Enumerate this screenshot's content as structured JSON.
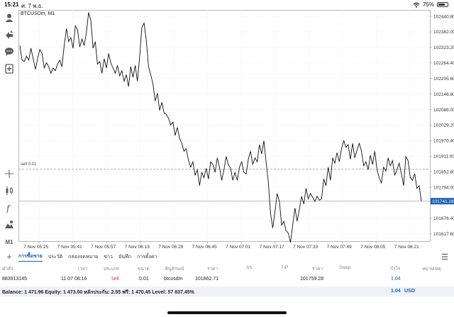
{
  "status_bar": {
    "time": "15:21",
    "date": "ศ. 7 พ.ย.",
    "battery": "75%",
    "battery_level": 0.75
  },
  "left_toolbar": {
    "icons": [
      "account-icon",
      "trade-icon",
      "chat-icon",
      "add-document-icon",
      "crosshair-icon",
      "candles-icon",
      "function-icon",
      "objects-icon",
      "timeframe-label"
    ],
    "timeframe": "M1"
  },
  "chart": {
    "symbol_title": "BTCUSDm, M1",
    "sell_line_label": "sell 0.01",
    "current_price": "101741.28",
    "accent": "#1e5fb4"
  },
  "chart_data": {
    "type": "line",
    "title": "BTCUSDm, M1",
    "y_ticks": [
      102440.8,
      102382.0,
      102323.2,
      102264.4,
      102205.6,
      102146.8,
      102088.0,
      102029.2,
      101970.4,
      101911.6,
      101852.8,
      101794.0,
      101735.2,
      101676.4,
      101617.6
    ],
    "y_tick_labels": [
      "102440.80",
      "102382.00",
      "102323.20",
      "102264.40",
      "102205.60",
      "102146.80",
      "102088.00",
      "102029.20",
      "101970.40",
      "101911.60",
      "101852.80",
      "101794.00",
      "101735.20",
      "101676.40",
      "101617.60"
    ],
    "x_labels": [
      "7 Nov 05:25",
      "7 Nov 05:41",
      "7 Nov 05:57",
      "7 Nov 06:13",
      "7 Nov 06:29",
      "7 Nov 06:45",
      "7 Nov 07:01",
      "7 Nov 07:17",
      "7 Nov 07:33",
      "7 Nov 07:49",
      "7 Nov 08:05",
      "7 Nov 08:21"
    ],
    "ylim": [
      101590,
      102465
    ],
    "sell_level": 101862.71,
    "current_price": 101741.28,
    "grid": true,
    "values": [
      102330,
      102275,
      102270,
      102290,
      102275,
      102320,
      102280,
      102240,
      102280,
      102315,
      102300,
      102245,
      102265,
      102250,
      102225,
      102245,
      102235,
      102260,
      102275,
      102250,
      102330,
      102395,
      102345,
      102360,
      102320,
      102405,
      102390,
      102325,
      102355,
      102330,
      102380,
      102455,
      102425,
      102320,
      102345,
      102260,
      102270,
      102225,
      102280,
      102245,
      102300,
      102265,
      102245,
      102225,
      102255,
      102215,
      102235,
      102195,
      102220,
      102175,
      102250,
      102210,
      102255,
      102195,
      102290,
      102400,
      102415,
      102350,
      102250,
      102220,
      102185,
      102120,
      102150,
      102085,
      102115,
      102075,
      102070,
      102055,
      102030,
      102040,
      101990,
      102020,
      101980,
      101960,
      101930,
      101940,
      101895,
      101870,
      101890,
      101840,
      101860,
      101800,
      101850,
      101830,
      101865,
      101825,
      101890,
      101880,
      101850,
      101905,
      101870,
      101820,
      101860,
      101910,
      101880,
      101865,
      101820,
      101850,
      101820,
      101870,
      101890,
      101850,
      101845,
      101900,
      101930,
      101880,
      101905,
      101890,
      101955,
      101920,
      101970,
      101890,
      101815,
      101695,
      101640,
      101700,
      101770,
      101740,
      101650,
      101665,
      101630,
      101620,
      101585,
      101650,
      101715,
      101665,
      101710,
      101760,
      101730,
      101790,
      101750,
      101770,
      101755,
      101740,
      101760,
      101745,
      101750,
      101825,
      101800,
      101870,
      101820,
      101905,
      101885,
      101925,
      101890,
      101940,
      101970,
      101945,
      101955,
      101900,
      101960,
      101905,
      101935,
      101960,
      101930,
      101875,
      101890,
      101860,
      101915,
      101880,
      101930,
      101860,
      101830,
      101810,
      101870,
      101855,
      101905,
      101875,
      101895,
      101840,
      101860,
      101885,
      101845,
      101800,
      101910,
      101895,
      101830,
      101820,
      101845,
      101790,
      101800,
      101741
    ]
  },
  "tabs": {
    "items": [
      "การซื้อขาย",
      "ประวัติ",
      "กล่องจดหมาย",
      "ข่าว",
      "บันทึก",
      "การตั้งค่า"
    ],
    "active": 0
  },
  "table": {
    "headers": [
      "คำสั่ง",
      "เวลา",
      "ประเภท",
      "ขนาด",
      "สัญลักษณ์",
      "ราคา",
      "S/L",
      "T/P",
      "ราคา",
      "Swap",
      "กำไร",
      "หมายเหตุ"
    ],
    "rows": [
      {
        "order": "883913145",
        "time": "11.07 08:16",
        "type": "sell",
        "size": "0.01",
        "symbol": "btcusdm",
        "price": "101862.71",
        "sl": "",
        "tp": "",
        "current": "101759.28",
        "swap": "",
        "profit": "1.04",
        "comment": ""
      }
    ]
  },
  "balance": {
    "text": "Balance: 1 471.96 Equity: 1 473.00 หลักประกัน: 2.55 ฟรี: 1 470.45 Level: 57 837.45%",
    "profit": "1.04",
    "currency": "USD"
  }
}
